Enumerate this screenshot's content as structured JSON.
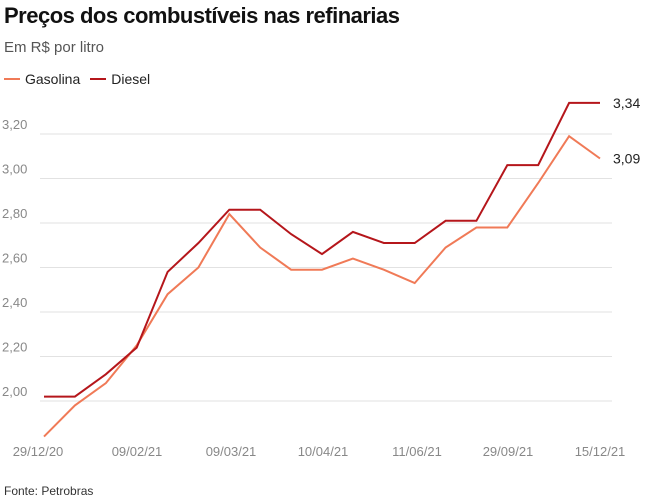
{
  "chart_data": {
    "type": "line",
    "title": "Preços dos combustíveis nas refinarias",
    "subtitle": "Em R$ por litro",
    "source": "Fonte: Petrobras",
    "x_tick_labels": [
      "29/12/20",
      "09/02/21",
      "09/03/21",
      "10/04/21",
      "11/06/21",
      "29/09/21",
      "15/12/21"
    ],
    "y_ticks": [
      "2,00",
      "2,20",
      "2,40",
      "2,60",
      "2,80",
      "3,00",
      "3,20"
    ],
    "y_tick_values": [
      2.0,
      2.2,
      2.4,
      2.6,
      2.8,
      3.0,
      3.2
    ],
    "ylim": [
      1.85,
      3.45
    ],
    "grid": true,
    "legend_position": "top-left",
    "series": [
      {
        "name": "Gasolina",
        "color": "#f07a57",
        "values": [
          1.84,
          1.98,
          2.08,
          2.25,
          2.48,
          2.6,
          2.84,
          2.69,
          2.59,
          2.59,
          2.64,
          2.59,
          2.53,
          2.69,
          2.78,
          2.78,
          2.98,
          3.19,
          3.09
        ],
        "end_label": "3,09"
      },
      {
        "name": "Diesel",
        "color": "#b5161b",
        "values": [
          2.02,
          2.02,
          2.12,
          2.24,
          2.58,
          2.71,
          2.86,
          2.86,
          2.75,
          2.66,
          2.76,
          2.71,
          2.71,
          2.81,
          2.81,
          3.06,
          3.06,
          3.34,
          3.34
        ],
        "end_label": "3,34"
      }
    ]
  }
}
